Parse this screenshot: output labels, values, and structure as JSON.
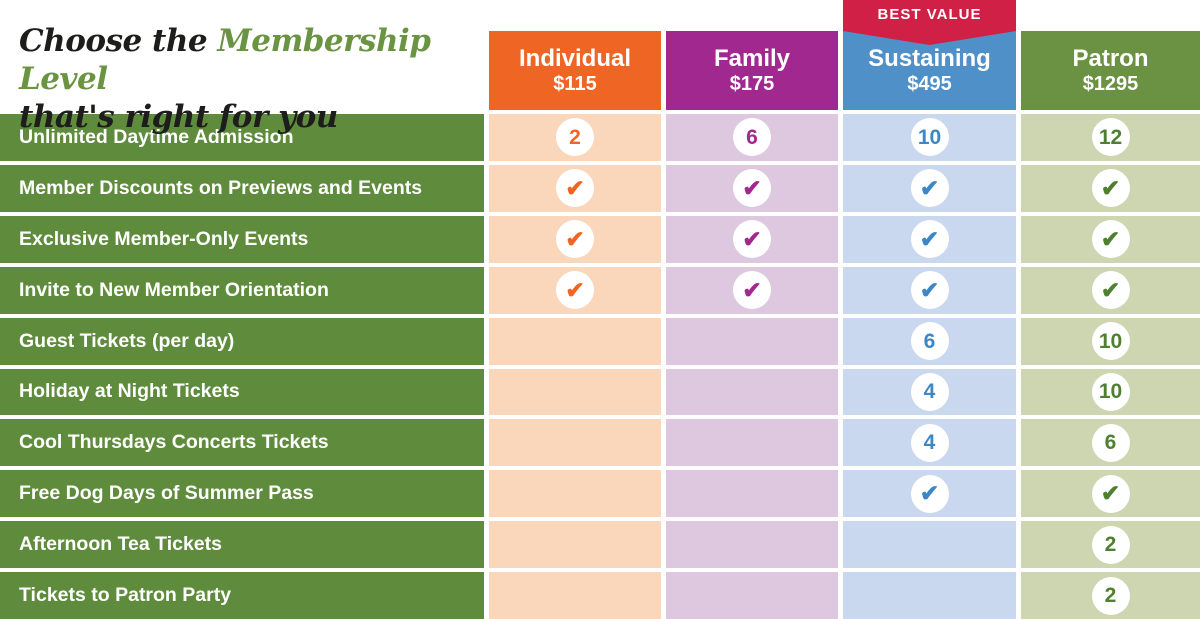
{
  "title": {
    "prefix": "Choose the ",
    "highlight": "Membership Level",
    "suffix": "that's right for you"
  },
  "banner": {
    "label": "BEST VALUE",
    "color": "#D12045"
  },
  "colors": {
    "title_text": "#1d1d1b",
    "title_highlight": "#6A9342",
    "row_label_bg": "#5F8C3C",
    "row_label_text": "#FFFFFF",
    "gap": "#FFFFFF"
  },
  "columns": [
    {
      "id": "individual",
      "name": "Individual",
      "price": "$115",
      "header_color": "#EE6524",
      "cell_color": "#FAD6BA",
      "value_color": "#EE6524",
      "best_value": false
    },
    {
      "id": "family",
      "name": "Family",
      "price": "$175",
      "header_color": "#A1288F",
      "cell_color": "#DDC8DF",
      "value_color": "#A1288F",
      "best_value": false
    },
    {
      "id": "sustaining",
      "name": "Sustaining",
      "price": "$495",
      "header_color": "#4E90C7",
      "cell_color": "#C9D8EE",
      "value_color": "#3D87C4",
      "best_value": true
    },
    {
      "id": "patron",
      "name": "Patron",
      "price": "$1295",
      "header_color": "#6B9142",
      "cell_color": "#CDD5B1",
      "value_color": "#4F8030",
      "best_value": false
    }
  ],
  "rows": [
    {
      "label": "Unlimited Daytime Admission",
      "values": [
        "2",
        "6",
        "10",
        "12"
      ]
    },
    {
      "label": "Member Discounts on Previews and Events",
      "values": [
        "check",
        "check",
        "check",
        "check"
      ]
    },
    {
      "label": "Exclusive Member-Only Events",
      "values": [
        "check",
        "check",
        "check",
        "check"
      ]
    },
    {
      "label": "Invite to New Member Orientation",
      "values": [
        "check",
        "check",
        "check",
        "check"
      ]
    },
    {
      "label": "Guest Tickets (per day)",
      "values": [
        "",
        "",
        "6",
        "10"
      ]
    },
    {
      "label": "Holiday at Night Tickets",
      "values": [
        "",
        "",
        "4",
        "10"
      ]
    },
    {
      "label": "Cool Thursdays Concerts Tickets",
      "values": [
        "",
        "",
        "4",
        "6"
      ]
    },
    {
      "label": "Free Dog Days of Summer Pass",
      "values": [
        "",
        "",
        "check",
        "check"
      ]
    },
    {
      "label": "Afternoon Tea Tickets",
      "values": [
        "",
        "",
        "",
        "2"
      ]
    },
    {
      "label": "Tickets to Patron Party",
      "values": [
        "",
        "",
        "",
        "2"
      ]
    }
  ],
  "chart_data": {
    "type": "table",
    "title": "Choose the Membership Level that's right for you",
    "columns": [
      "Individual $115",
      "Family $175",
      "Sustaining $495",
      "Patron $1295"
    ],
    "best_value_column": "Sustaining $495",
    "row_labels": [
      "Unlimited Daytime Admission",
      "Member Discounts on Previews and Events",
      "Exclusive Member-Only Events",
      "Invite to New Member Orientation",
      "Guest Tickets (per day)",
      "Holiday at Night Tickets",
      "Cool Thursdays Concerts Tickets",
      "Free Dog Days of Summer Pass",
      "Afternoon Tea Tickets",
      "Tickets to Patron Party"
    ],
    "values": [
      [
        "2",
        "6",
        "10",
        "12"
      ],
      [
        "✓",
        "✓",
        "✓",
        "✓"
      ],
      [
        "✓",
        "✓",
        "✓",
        "✓"
      ],
      [
        "✓",
        "✓",
        "✓",
        "✓"
      ],
      [
        "",
        "",
        "6",
        "10"
      ],
      [
        "",
        "",
        "4",
        "10"
      ],
      [
        "",
        "",
        "4",
        "6"
      ],
      [
        "",
        "",
        "✓",
        "✓"
      ],
      [
        "",
        "",
        "",
        "2"
      ],
      [
        "",
        "",
        "",
        "2"
      ]
    ]
  }
}
